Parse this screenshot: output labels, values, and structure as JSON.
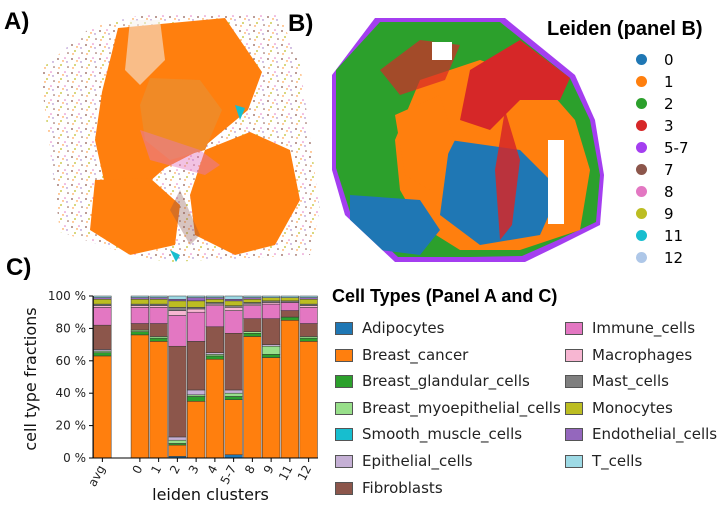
{
  "panel_labels": {
    "a": "A)",
    "b": "B)",
    "c": "C)"
  },
  "legend_b": {
    "title": "Leiden (panel B)",
    "items": [
      {
        "label": "0",
        "color": "#1f77b4"
      },
      {
        "label": "1",
        "color": "#ff7f0e"
      },
      {
        "label": "2",
        "color": "#2ca02c"
      },
      {
        "label": "3",
        "color": "#d62728"
      },
      {
        "label": "5-7",
        "color": "#a43ef0"
      },
      {
        "label": "7",
        "color": "#8c564b"
      },
      {
        "label": "8",
        "color": "#e377c2"
      },
      {
        "label": "9",
        "color": "#bcbd22"
      },
      {
        "label": "11",
        "color": "#17becf"
      },
      {
        "label": "12",
        "color": "#aec7e8"
      }
    ]
  },
  "legend_c": {
    "title": "Cell Types (Panel A and C)",
    "items": [
      {
        "label": "Adipocytes",
        "color": "#1f77b4"
      },
      {
        "label": "Breast_cancer",
        "color": "#ff7f0e"
      },
      {
        "label": "Breast_glandular_cells",
        "color": "#2ca02c"
      },
      {
        "label": "Breast_myoepithelial_cells",
        "color": "#98df8a"
      },
      {
        "label": "Smooth_muscle_cells",
        "color": "#17becf"
      },
      {
        "label": "Epithelial_cells",
        "color": "#c5b0d5"
      },
      {
        "label": "Fibroblasts",
        "color": "#8c564b"
      },
      {
        "label": "Immune_cells",
        "color": "#e377c2"
      },
      {
        "label": "Macrophages",
        "color": "#f7b6d2"
      },
      {
        "label": "Mast_cells",
        "color": "#7f7f7f"
      },
      {
        "label": "Monocytes",
        "color": "#bcbd22"
      },
      {
        "label": "Endothelial_cells",
        "color": "#9467bd"
      },
      {
        "label": "T_cells",
        "color": "#9edae5"
      }
    ]
  },
  "chart_data": {
    "type": "bar",
    "stacked": true,
    "xlabel": "leiden clusters",
    "ylabel": "cell type fractions",
    "ylim": [
      0,
      100
    ],
    "yticks": [
      "0 %",
      "20 %",
      "40 %",
      "60 %",
      "80 %",
      "100 %"
    ],
    "categories": [
      "avg",
      "",
      "0",
      "1",
      "2",
      "3",
      "4",
      "5-7",
      "8",
      "9",
      "11",
      "12"
    ],
    "series": [
      {
        "name": "Adipocytes",
        "color": "#1f77b4",
        "values": [
          0,
          0,
          0,
          0,
          1,
          0,
          0,
          2,
          0,
          0,
          0,
          0
        ]
      },
      {
        "name": "Breast_cancer",
        "color": "#ff7f0e",
        "values": [
          63,
          0,
          76,
          72,
          7,
          35,
          61,
          34,
          75,
          62,
          85,
          72
        ]
      },
      {
        "name": "Breast_glandular_cells",
        "color": "#2ca02c",
        "values": [
          2,
          0,
          2,
          2,
          1,
          3,
          2,
          2,
          2,
          2,
          2,
          2
        ]
      },
      {
        "name": "Breast_myoepithelial_cells",
        "color": "#98df8a",
        "values": [
          1,
          0,
          1,
          1,
          2,
          1,
          1,
          2,
          1,
          5,
          0,
          1
        ]
      },
      {
        "name": "Smooth_muscle_cells",
        "color": "#17becf",
        "values": [
          0,
          0,
          0,
          0,
          0,
          0,
          0,
          0,
          0,
          0,
          0,
          0
        ]
      },
      {
        "name": "Epithelial_cells",
        "color": "#c5b0d5",
        "values": [
          1,
          0,
          0,
          0,
          2,
          3,
          1,
          2,
          0,
          1,
          0,
          0
        ]
      },
      {
        "name": "Fibroblasts",
        "color": "#8c564b",
        "values": [
          15,
          0,
          4,
          8,
          56,
          30,
          16,
          35,
          8,
          16,
          4,
          8
        ]
      },
      {
        "name": "Immune_cells",
        "color": "#e377c2",
        "values": [
          11,
          0,
          10,
          10,
          19,
          18,
          13,
          14,
          8,
          9,
          5,
          10
        ]
      },
      {
        "name": "Macrophages",
        "color": "#f7b6d2",
        "values": [
          1,
          0,
          1,
          1,
          3,
          2,
          1,
          2,
          1,
          1,
          0,
          1
        ]
      },
      {
        "name": "Mast_cells",
        "color": "#7f7f7f",
        "values": [
          1,
          0,
          1,
          1,
          2,
          1,
          1,
          1,
          1,
          1,
          1,
          1
        ]
      },
      {
        "name": "Monocytes",
        "color": "#bcbd22",
        "values": [
          3,
          0,
          3,
          3,
          4,
          4,
          2,
          3,
          2,
          2,
          2,
          3
        ]
      },
      {
        "name": "Endothelial_cells",
        "color": "#9467bd",
        "values": [
          1,
          0,
          1,
          1,
          1,
          2,
          1,
          1,
          1,
          0,
          0,
          1
        ]
      },
      {
        "name": "T_cells",
        "color": "#9edae5",
        "values": [
          1,
          0,
          1,
          1,
          2,
          1,
          1,
          2,
          1,
          1,
          1,
          1
        ]
      }
    ]
  }
}
